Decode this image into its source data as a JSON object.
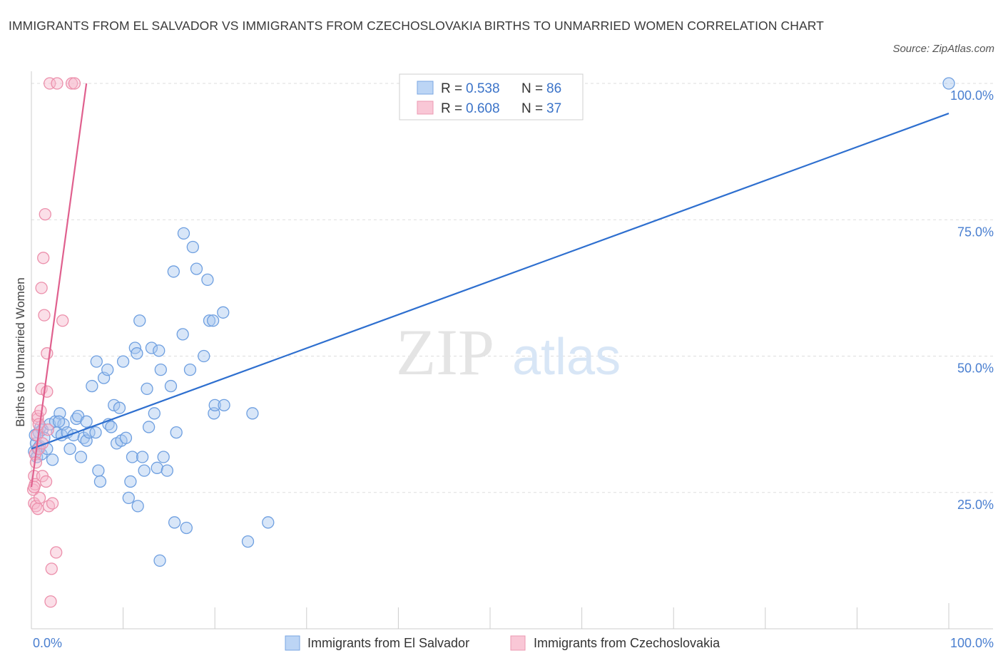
{
  "title": "IMMIGRANTS FROM EL SALVADOR VS IMMIGRANTS FROM CZECHOSLOVAKIA BIRTHS TO UNMARRIED WOMEN CORRELATION CHART",
  "source": "Source: ZipAtlas.com",
  "watermark": {
    "zip": "ZIP",
    "atlas": "atlas"
  },
  "colors": {
    "blue_fill": "#a9c8f0",
    "blue_stroke": "#6e9fe0",
    "blue_line": "#2e6fcf",
    "pink_fill": "#f7b8cb",
    "pink_stroke": "#ec8fab",
    "pink_line": "#e0608e",
    "grid": "#dddddd",
    "axis_text": "#4a7fd0"
  },
  "stats": [
    {
      "r_label": "R =",
      "r_value": "0.538",
      "n_label": "N =",
      "n_value": "86",
      "color": "blue"
    },
    {
      "r_label": "R =",
      "r_value": "0.608",
      "n_label": "N =",
      "n_value": "37",
      "color": "pink"
    }
  ],
  "chart_data": {
    "type": "scatter",
    "title": "IMMIGRANTS FROM EL SALVADOR VS IMMIGRANTS FROM CZECHOSLOVAKIA BIRTHS TO UNMARRIED WOMEN CORRELATION CHART",
    "xlabel": "",
    "ylabel": "Births to Unmarried Women",
    "xlim": [
      0,
      100
    ],
    "ylim": [
      0,
      100
    ],
    "x_tick_labels": [
      "0.0%",
      "100.0%"
    ],
    "y_tick_labels": [
      "25.0%",
      "50.0%",
      "75.0%",
      "100.0%"
    ],
    "y_ticks": [
      25,
      50,
      75,
      100
    ],
    "grid": true,
    "legend_position": "bottom",
    "series": [
      {
        "name": "Immigrants from El Salvador",
        "color": "blue",
        "trend": [
          [
            0,
            33.0
          ],
          [
            100,
            94.5
          ]
        ],
        "points": [
          [
            0.3,
            32.5
          ],
          [
            0.5,
            34.0
          ],
          [
            0.6,
            31.5
          ],
          [
            0.7,
            33.0
          ],
          [
            0.8,
            36.0
          ],
          [
            0.9,
            33.5
          ],
          [
            1.0,
            37.0
          ],
          [
            1.1,
            32.0
          ],
          [
            1.2,
            36.5
          ],
          [
            1.4,
            35.0
          ],
          [
            1.7,
            33.0
          ],
          [
            2.0,
            37.5
          ],
          [
            2.3,
            31.0
          ],
          [
            2.6,
            38.0
          ],
          [
            2.8,
            36.0
          ],
          [
            3.1,
            39.5
          ],
          [
            3.3,
            35.5
          ],
          [
            3.5,
            37.5
          ],
          [
            3.9,
            36.0
          ],
          [
            4.2,
            33.0
          ],
          [
            4.6,
            35.5
          ],
          [
            4.9,
            38.5
          ],
          [
            5.1,
            39.0
          ],
          [
            5.4,
            31.5
          ],
          [
            5.7,
            35.0
          ],
          [
            6.0,
            34.5
          ],
          [
            6.3,
            36.0
          ],
          [
            6.6,
            44.5
          ],
          [
            7.0,
            36.0
          ],
          [
            7.1,
            49.0
          ],
          [
            7.3,
            29.0
          ],
          [
            7.5,
            27.0
          ],
          [
            7.9,
            46.0
          ],
          [
            8.3,
            47.5
          ],
          [
            8.4,
            37.5
          ],
          [
            8.7,
            37.0
          ],
          [
            9.0,
            41.0
          ],
          [
            9.3,
            34.0
          ],
          [
            9.6,
            40.5
          ],
          [
            9.8,
            34.5
          ],
          [
            10.0,
            49.0
          ],
          [
            10.3,
            35.0
          ],
          [
            10.6,
            24.0
          ],
          [
            10.8,
            27.0
          ],
          [
            11.0,
            31.5
          ],
          [
            11.3,
            51.5
          ],
          [
            11.6,
            22.5
          ],
          [
            11.8,
            56.5
          ],
          [
            11.5,
            50.5
          ],
          [
            12.1,
            31.5
          ],
          [
            12.3,
            29.0
          ],
          [
            12.6,
            44.0
          ],
          [
            12.8,
            37.0
          ],
          [
            13.1,
            51.5
          ],
          [
            13.4,
            39.5
          ],
          [
            13.7,
            29.5
          ],
          [
            13.9,
            51.0
          ],
          [
            14.1,
            47.5
          ],
          [
            14.4,
            31.5
          ],
          [
            14.8,
            29.0
          ],
          [
            15.2,
            44.5
          ],
          [
            15.5,
            65.5
          ],
          [
            15.6,
            19.5
          ],
          [
            15.8,
            36.0
          ],
          [
            14.0,
            12.5
          ],
          [
            16.6,
            72.5
          ],
          [
            16.5,
            54.0
          ],
          [
            16.9,
            18.5
          ],
          [
            17.3,
            47.5
          ],
          [
            17.6,
            70.0
          ],
          [
            18.0,
            66.0
          ],
          [
            18.8,
            50.0
          ],
          [
            19.2,
            64.0
          ],
          [
            19.4,
            56.5
          ],
          [
            19.8,
            56.5
          ],
          [
            19.9,
            39.5
          ],
          [
            20.0,
            41.0
          ],
          [
            20.9,
            58.0
          ],
          [
            21.0,
            41.0
          ],
          [
            23.6,
            16.0
          ],
          [
            24.1,
            39.5
          ],
          [
            25.8,
            19.5
          ],
          [
            3.0,
            38.0
          ],
          [
            6.0,
            38.0
          ],
          [
            100.0,
            100.0
          ],
          [
            0.4,
            35.5
          ]
        ]
      },
      {
        "name": "Immigrants from Czechoslovakia",
        "color": "pink",
        "trend": [
          [
            0,
            26.0
          ],
          [
            6.0,
            100.0
          ]
        ],
        "points": [
          [
            0.2,
            25.5
          ],
          [
            0.3,
            23.0
          ],
          [
            0.3,
            28.0
          ],
          [
            0.4,
            26.5
          ],
          [
            0.4,
            32.0
          ],
          [
            0.5,
            22.5
          ],
          [
            0.5,
            30.5
          ],
          [
            0.6,
            35.5
          ],
          [
            0.7,
            38.5
          ],
          [
            0.7,
            39.0
          ],
          [
            0.7,
            22.0
          ],
          [
            0.8,
            37.5
          ],
          [
            0.8,
            33.0
          ],
          [
            0.9,
            24.0
          ],
          [
            1.0,
            40.0
          ],
          [
            1.1,
            44.0
          ],
          [
            1.1,
            62.5
          ],
          [
            1.2,
            34.0
          ],
          [
            1.2,
            28.0
          ],
          [
            1.3,
            68.0
          ],
          [
            1.4,
            57.5
          ],
          [
            1.5,
            76.0
          ],
          [
            1.6,
            27.0
          ],
          [
            1.7,
            50.5
          ],
          [
            1.7,
            43.5
          ],
          [
            1.8,
            36.5
          ],
          [
            1.9,
            22.5
          ],
          [
            2.0,
            100.0
          ],
          [
            2.1,
            5.0
          ],
          [
            2.2,
            11.0
          ],
          [
            2.3,
            23.0
          ],
          [
            2.7,
            14.0
          ],
          [
            2.8,
            100.0
          ],
          [
            3.4,
            56.5
          ],
          [
            4.4,
            100.0
          ],
          [
            4.7,
            100.0
          ],
          [
            0.3,
            26.0
          ]
        ]
      }
    ]
  },
  "legend": [
    {
      "label": "Immigrants from El Salvador",
      "color": "blue"
    },
    {
      "label": "Immigrants from Czechoslovakia",
      "color": "pink"
    }
  ]
}
